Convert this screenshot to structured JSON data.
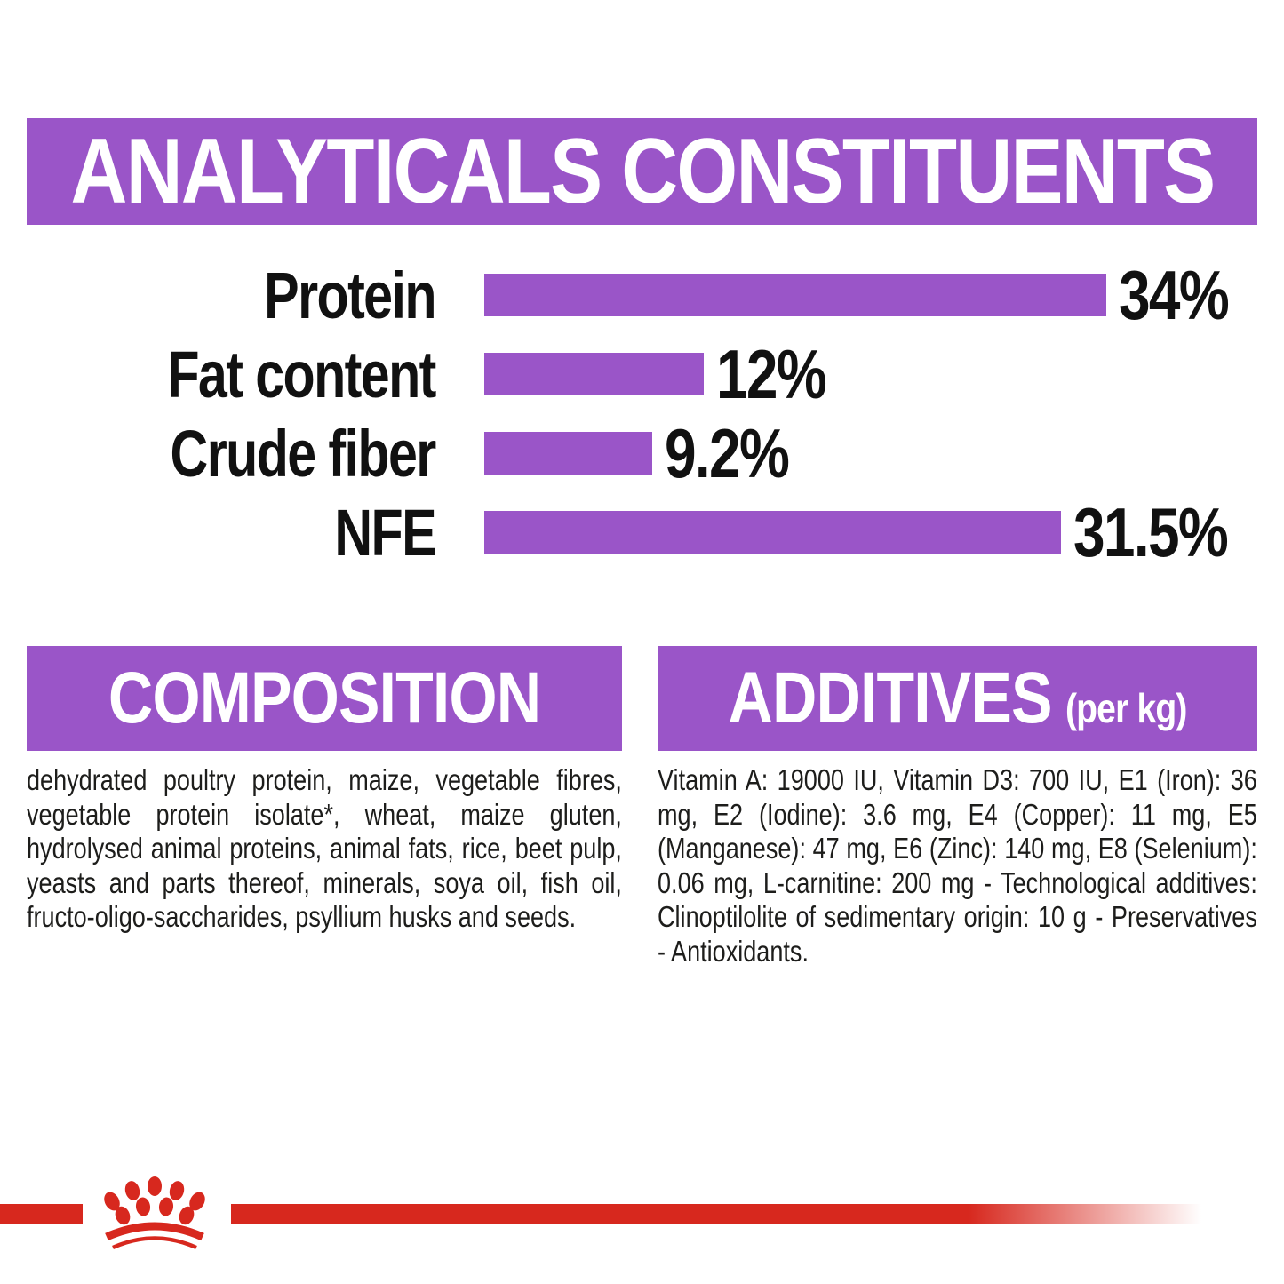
{
  "colors": {
    "purple": "#9A55C8",
    "red": "#D7281E",
    "text": "#1d1d1b"
  },
  "header": {
    "title": "ANALYTICALS CONSTITUENTS"
  },
  "chart_data": {
    "type": "bar",
    "orientation": "horizontal",
    "title": "ANALYTICALS CONSTITUENTS",
    "categories": [
      "Protein",
      "Fat content",
      "Crude fiber",
      "NFE"
    ],
    "values": [
      34,
      12,
      9.2,
      31.5
    ],
    "value_labels": [
      "34%",
      "12%",
      "9.2%",
      "31.5%"
    ],
    "xlim": [
      0,
      34
    ],
    "bar_color": "#9A55C8",
    "grid": false,
    "legend": false
  },
  "composition": {
    "heading": "COMPOSITION",
    "body": "dehydrated poultry protein, maize, vegetable fibres, vegetable protein isolate*, wheat, maize gluten, hydrolysed animal proteins, animal fats, rice, beet pulp, yeasts and parts thereof, minerals, soya oil, fish oil, fructo-oligo-saccharides, psyllium husks and seeds."
  },
  "additives": {
    "heading": "ADDITIVES",
    "heading_suffix": "(per kg)",
    "body": "Vitamin A: 19000 IU, Vitamin D3: 700 IU, E1 (Iron): 36 mg, E2 (Iodine): 3.6 mg, E4 (Copper): 11 mg, E5 (Manganese): 47 mg, E6 (Zinc): 140 mg, E8 (Selenium): 0.06 mg, L-carnitine: 200 mg - Technological additives: Clinoptilolite of sedimentary origin: 10 g - Preservatives - Antioxidants."
  },
  "footer": {
    "brand_icon": "royal-canin-crown-paw"
  }
}
